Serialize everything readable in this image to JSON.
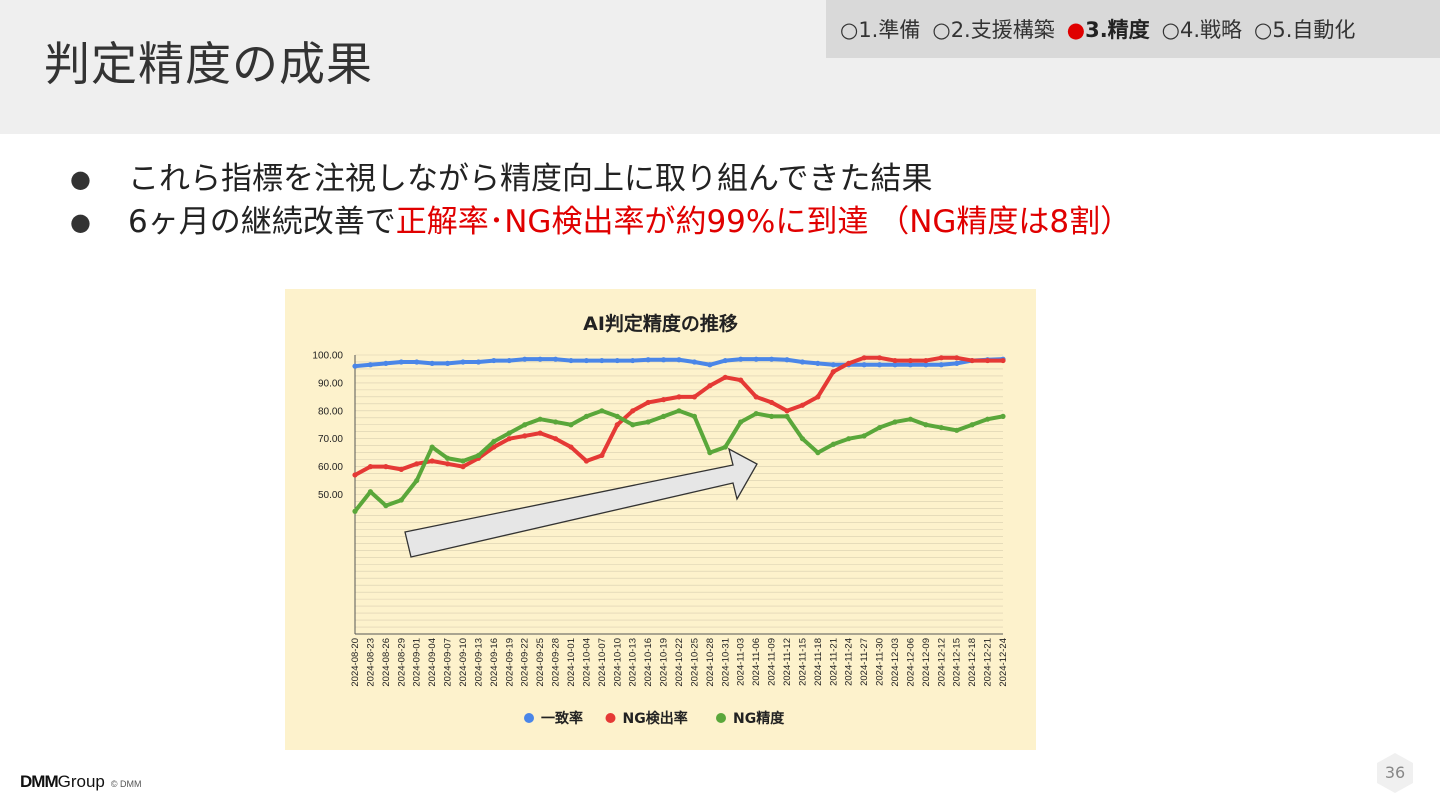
{
  "slide": {
    "title": "判定精度の成果",
    "nav": [
      {
        "label": "○1.準備",
        "active": false
      },
      {
        "label": "○2.支援構築",
        "active": false
      },
      {
        "mark": "●",
        "label": "3.精度",
        "active": true
      },
      {
        "label": "○4.戦略",
        "active": false
      },
      {
        "label": "○5.自動化",
        "active": false
      }
    ],
    "bullet_symbol": "●",
    "bullets": {
      "b1": "これら指標を注視しながら精度向上に取り組んできた結果",
      "b2_plain": "6ヶ月の継続改善で",
      "b2_highlight": "正解率･NG検出率が約99%に到達 （NG精度は8割）"
    },
    "page_number": "36",
    "footer": {
      "logo_bold": "DMM",
      "logo_rest": "Group",
      "copyright": "© DMM"
    },
    "colors": {
      "highlight": "#e00000",
      "chart_bg": "#fdf2cc"
    }
  },
  "chart_data": {
    "type": "line",
    "title": "AI判定精度の推移",
    "yticks": [
      "100.00",
      "90.00",
      "80.00",
      "70.00",
      "60.00",
      "50.00"
    ],
    "ylim": [
      0,
      100
    ],
    "grid": true,
    "legend_position": "bottom",
    "x_tick_labels": [
      "2024-08-20",
      "2024-08-23",
      "2024-08-26",
      "2024-08-29",
      "2024-09-01",
      "2024-09-04",
      "2024-09-07",
      "2024-09-10",
      "2024-09-13",
      "2024-09-16",
      "2024-09-19",
      "2024-09-22",
      "2024-09-25",
      "2024-09-28",
      "2024-10-01",
      "2024-10-04",
      "2024-10-07",
      "2024-10-10",
      "2024-10-13",
      "2024-10-16",
      "2024-10-19",
      "2024-10-22",
      "2024-10-25",
      "2024-10-28",
      "2024-10-31",
      "2024-11-03",
      "2024-11-06",
      "2024-11-09",
      "2024-11-12",
      "2024-11-15",
      "2024-11-18",
      "2024-11-21",
      "2024-11-24",
      "2024-11-27",
      "2024-11-30",
      "2024-12-03",
      "2024-12-06",
      "2024-12-09",
      "2024-12-12",
      "2024-12-15",
      "2024-12-18",
      "2024-12-21",
      "2024-12-24"
    ],
    "series": [
      {
        "name": "一致率",
        "color": "#4a86e8",
        "values": [
          96,
          96.5,
          97,
          97.5,
          97.5,
          97,
          97,
          97.5,
          97.5,
          98,
          98,
          98.5,
          98.5,
          98.5,
          98,
          98,
          98,
          98,
          98,
          98.3,
          98.3,
          98.3,
          97.5,
          96.5,
          98,
          98.5,
          98.5,
          98.5,
          98.3,
          97.5,
          97,
          96.5,
          96.5,
          96.5,
          96.5,
          96.5,
          96.5,
          96.5,
          96.5,
          97,
          98,
          98.3,
          98.5
        ]
      },
      {
        "name": "NG検出率",
        "color": "#e53935",
        "values": [
          57,
          60,
          60,
          59,
          61,
          62,
          61,
          60,
          63,
          67,
          70,
          71,
          72,
          70,
          67,
          62,
          64,
          75,
          80,
          83,
          84,
          85,
          85,
          89,
          92,
          91,
          85,
          83,
          80,
          82,
          85,
          94,
          97,
          99,
          99,
          98,
          98,
          98,
          99,
          99,
          98,
          98,
          98
        ]
      },
      {
        "name": "NG精度",
        "color": "#5aa73a",
        "values": [
          44,
          51,
          46,
          48,
          55,
          67,
          63,
          62,
          64,
          69,
          72,
          75,
          77,
          76,
          75,
          78,
          80,
          78,
          75,
          76,
          78,
          80,
          78,
          65,
          67,
          76,
          79,
          78,
          78,
          70,
          65,
          68,
          70,
          71,
          74,
          76,
          77,
          75,
          74,
          73,
          75,
          77,
          78
        ]
      }
    ],
    "annotation": "arrow"
  }
}
